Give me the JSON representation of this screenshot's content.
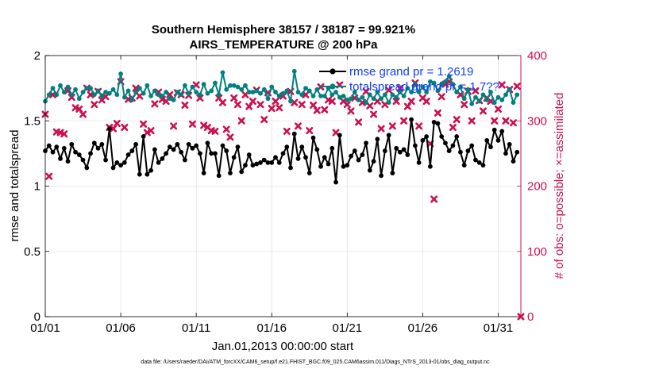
{
  "chart_data": {
    "type": "line",
    "title": "Southern Hemisphere 38157 / 38187 = 99.921%",
    "subtitle": "AIRS_TEMPERATURE @ 200 hPa",
    "xlabel": "Jan.01,2013 00:00:00 start",
    "ylabel": "rmse and totalspread",
    "y2label": "# of obs: o=possible; ×=assimilated",
    "xlim": [
      0,
      31.5
    ],
    "ylim": [
      0,
      2
    ],
    "y2lim": [
      0,
      400
    ],
    "x_ticks": [
      0,
      5,
      10,
      15,
      20,
      25,
      30
    ],
    "x_tick_labels": [
      "01/01",
      "01/06",
      "01/11",
      "01/16",
      "01/21",
      "01/26",
      "01/31"
    ],
    "y_ticks": [
      0,
      0.5,
      1,
      1.5,
      2
    ],
    "y_tick_labels": [
      "0",
      "0.5",
      "1",
      "1.5",
      "2"
    ],
    "y2_ticks": [
      0,
      100,
      200,
      300,
      400
    ],
    "y2_tick_labels": [
      "0",
      "100",
      "200",
      "300",
      "400"
    ],
    "grid": true,
    "legend_position": "top-right",
    "colors": {
      "rmse": "#000000",
      "spread": "#008080",
      "obs": "#cc0f4f",
      "right_axis": "#cc0f4f",
      "legend_text": "#1040ff"
    },
    "series": [
      {
        "name": "rmse grand pr = 1.2619",
        "color": "#000000",
        "x": [
          0.0,
          0.25,
          0.5,
          0.75,
          1.0,
          1.25,
          1.5,
          1.75,
          2.0,
          2.25,
          2.5,
          2.75,
          3.0,
          3.25,
          3.5,
          3.75,
          4.0,
          4.25,
          4.5,
          4.75,
          5.0,
          5.25,
          5.5,
          5.75,
          6.0,
          6.25,
          6.5,
          6.75,
          7.0,
          7.25,
          7.5,
          7.75,
          8.0,
          8.25,
          8.5,
          8.75,
          9.0,
          9.25,
          9.5,
          9.75,
          10.0,
          10.25,
          10.5,
          10.75,
          11.0,
          11.25,
          11.5,
          11.75,
          12.0,
          12.25,
          12.5,
          12.75,
          13.0,
          13.25,
          13.5,
          13.75,
          14.0,
          14.25,
          14.5,
          14.75,
          15.0,
          15.25,
          15.5,
          15.75,
          16.0,
          16.25,
          16.5,
          16.75,
          17.0,
          17.25,
          17.5,
          17.75,
          18.0,
          18.25,
          18.5,
          18.75,
          19.0,
          19.25,
          19.5,
          19.75,
          20.0,
          20.25,
          20.5,
          20.75,
          21.0,
          21.25,
          21.5,
          21.75,
          22.0,
          22.25,
          22.5,
          22.75,
          23.0,
          23.25,
          23.5,
          23.75,
          24.0,
          24.25,
          24.5,
          24.75,
          25.0,
          25.25,
          25.5,
          25.75,
          26.0,
          26.25,
          26.5,
          26.75,
          27.0,
          27.25,
          27.5,
          27.75,
          28.0,
          28.25,
          28.5,
          28.75,
          29.0,
          29.25,
          29.5,
          29.75,
          30.0,
          30.25,
          30.5,
          30.75,
          31.0,
          31.25
        ],
        "values": [
          1.27,
          1.31,
          1.26,
          1.3,
          1.21,
          1.29,
          1.19,
          1.32,
          1.26,
          1.24,
          1.2,
          1.14,
          1.25,
          1.33,
          1.29,
          1.32,
          1.2,
          1.44,
          1.14,
          1.18,
          1.16,
          1.18,
          1.24,
          1.27,
          1.32,
          1.09,
          1.38,
          1.09,
          1.12,
          1.28,
          1.18,
          1.21,
          1.25,
          1.3,
          1.28,
          1.32,
          1.26,
          1.2,
          1.32,
          1.29,
          1.31,
          1.25,
          1.1,
          1.33,
          1.25,
          1.25,
          1.08,
          1.31,
          1.27,
          1.1,
          1.22,
          1.3,
          1.11,
          1.16,
          1.24,
          1.16,
          1.17,
          1.18,
          1.2,
          1.18,
          1.18,
          1.22,
          1.18,
          1.25,
          1.3,
          1.14,
          1.4,
          1.21,
          1.3,
          1.22,
          1.1,
          1.37,
          1.28,
          1.15,
          1.22,
          1.17,
          1.29,
          1.03,
          1.39,
          1.15,
          1.16,
          1.23,
          1.27,
          1.2,
          1.24,
          1.33,
          1.12,
          1.19,
          1.36,
          1.08,
          1.27,
          1.39,
          1.1,
          1.29,
          1.26,
          1.28,
          1.24,
          1.51,
          1.31,
          1.18,
          1.35,
          1.38,
          1.15,
          1.49,
          1.48,
          1.38,
          1.33,
          1.27,
          1.31,
          1.38,
          1.26,
          1.16,
          1.27,
          1.31,
          1.2,
          1.18,
          1.16,
          1.35,
          1.3,
          1.43,
          1.35,
          1.42,
          1.25,
          1.32,
          1.19,
          1.26
        ]
      },
      {
        "name": "totalspread grand pr = 1.7??",
        "color": "#008080",
        "x": [
          0.0,
          0.25,
          0.5,
          0.75,
          1.0,
          1.25,
          1.5,
          1.75,
          2.0,
          2.25,
          2.5,
          2.75,
          3.0,
          3.25,
          3.5,
          3.75,
          4.0,
          4.25,
          4.5,
          4.75,
          5.0,
          5.25,
          5.5,
          5.75,
          6.0,
          6.25,
          6.5,
          6.75,
          7.0,
          7.25,
          7.5,
          7.75,
          8.0,
          8.25,
          8.5,
          8.75,
          9.0,
          9.25,
          9.5,
          9.75,
          10.0,
          10.25,
          10.5,
          10.75,
          11.0,
          11.25,
          11.5,
          11.75,
          12.0,
          12.25,
          12.5,
          12.75,
          13.0,
          13.25,
          13.5,
          13.75,
          14.0,
          14.25,
          14.5,
          14.75,
          15.0,
          15.25,
          15.5,
          15.75,
          16.0,
          16.25,
          16.5,
          16.75,
          17.0,
          17.25,
          17.5,
          17.75,
          18.0,
          18.25,
          18.5,
          18.75,
          19.0,
          19.25,
          19.5,
          19.75,
          20.0,
          20.25,
          20.5,
          20.75,
          21.0,
          21.25,
          21.5,
          21.75,
          22.0,
          22.25,
          22.5,
          22.75,
          23.0,
          23.25,
          23.5,
          23.75,
          24.0,
          24.25,
          24.5,
          24.75,
          25.0,
          25.25,
          25.5,
          25.75,
          26.0,
          26.25,
          26.5,
          26.75,
          27.0,
          27.25,
          27.5,
          27.75,
          28.0,
          28.25,
          28.5,
          28.75,
          29.0,
          29.25,
          29.5,
          29.75,
          30.0,
          30.25,
          30.5,
          30.75,
          31.0,
          31.25
        ],
        "values": [
          1.65,
          1.7,
          1.75,
          1.7,
          1.77,
          1.72,
          1.76,
          1.7,
          1.74,
          1.67,
          1.72,
          1.75,
          1.75,
          1.7,
          1.73,
          1.69,
          1.72,
          1.71,
          1.74,
          1.7,
          1.86,
          1.68,
          1.73,
          1.66,
          1.72,
          1.75,
          1.71,
          1.77,
          1.69,
          1.73,
          1.7,
          1.69,
          1.72,
          1.67,
          1.66,
          1.72,
          1.7,
          1.77,
          1.71,
          1.76,
          1.72,
          1.7,
          1.78,
          1.71,
          1.73,
          1.79,
          1.7,
          1.87,
          1.74,
          1.77,
          1.77,
          1.76,
          1.74,
          1.77,
          1.72,
          1.72,
          1.73,
          1.71,
          1.74,
          1.67,
          1.76,
          1.72,
          1.69,
          1.71,
          1.73,
          1.65,
          1.88,
          1.72,
          1.7,
          1.75,
          1.73,
          1.69,
          1.74,
          1.69,
          1.69,
          1.75,
          1.7,
          1.72,
          1.68,
          1.69,
          1.66,
          1.67,
          1.72,
          1.66,
          1.68,
          1.64,
          1.7,
          1.67,
          1.72,
          1.67,
          1.7,
          1.64,
          1.7,
          1.68,
          1.72,
          1.69,
          1.75,
          1.72,
          1.78,
          1.72,
          1.76,
          1.72,
          1.8,
          1.79,
          1.73,
          1.78,
          1.8,
          1.84,
          1.78,
          1.72,
          1.76,
          1.67,
          1.74,
          1.63,
          1.68,
          1.65,
          1.7,
          1.66,
          1.72,
          1.64,
          1.68,
          1.66,
          1.7,
          1.74,
          1.64,
          1.7
        ]
      },
      {
        "name": "obs assimilated",
        "color": "#cc0f4f",
        "axis": "right",
        "x": [
          0.0,
          0.25,
          0.5,
          0.75,
          1.0,
          1.25,
          1.5,
          1.75,
          2.0,
          2.25,
          2.5,
          2.75,
          3.0,
          3.25,
          3.5,
          3.75,
          4.0,
          4.25,
          4.5,
          4.75,
          5.0,
          5.25,
          5.5,
          5.75,
          6.0,
          6.25,
          6.5,
          6.75,
          7.0,
          7.25,
          7.5,
          7.75,
          8.0,
          8.25,
          8.5,
          8.75,
          9.0,
          9.25,
          9.5,
          9.75,
          10.0,
          10.25,
          10.5,
          10.75,
          11.0,
          11.25,
          11.5,
          11.75,
          12.0,
          12.25,
          12.5,
          12.75,
          13.0,
          13.25,
          13.5,
          13.75,
          14.0,
          14.25,
          14.5,
          14.75,
          15.0,
          15.25,
          15.5,
          15.75,
          16.0,
          16.25,
          16.5,
          16.75,
          17.0,
          17.25,
          17.5,
          17.75,
          18.0,
          18.25,
          18.5,
          18.75,
          19.0,
          19.25,
          19.5,
          19.75,
          20.0,
          20.25,
          20.5,
          20.75,
          21.0,
          21.25,
          21.5,
          21.75,
          22.0,
          22.25,
          22.5,
          22.75,
          23.0,
          23.25,
          23.5,
          23.75,
          24.0,
          24.25,
          24.5,
          24.75,
          25.0,
          25.25,
          25.5,
          25.75,
          26.0,
          26.25,
          26.5,
          26.75,
          27.0,
          27.25,
          27.5,
          27.75,
          28.0,
          28.25,
          28.5,
          28.75,
          29.0,
          29.25,
          29.5,
          29.75,
          30.0,
          30.25,
          30.5,
          30.75,
          31.0,
          31.25,
          31.5
        ],
        "values": [
          310,
          215,
          340,
          283,
          282,
          280,
          346,
          336,
          320,
          318,
          310,
          350,
          340,
          325,
          345,
          332,
          337,
          290,
          288,
          296,
          360,
          290,
          333,
          335,
          350,
          338,
          295,
          282,
          285,
          326,
          344,
          333,
          330,
          340,
          292,
          343,
          340,
          324,
          339,
          295,
          355,
          335,
          293,
          290,
          285,
          284,
          335,
          328,
          287,
          275,
          335,
          325,
          300,
          340,
          322,
          330,
          347,
          325,
          302,
          343,
          319,
          330,
          320,
          338,
          284,
          345,
          328,
          292,
          325,
          340,
          285,
          324,
          316,
          352,
          317,
          332,
          330,
          282,
          355,
          330,
          325,
          315,
          335,
          298,
          328,
          345,
          323,
          310,
          330,
          288,
          325,
          347,
          292,
          330,
          350,
          300,
          322,
          330,
          358,
          292,
          335,
          330,
          265,
          180,
          312,
          337,
          356,
          360,
          290,
          302,
          340,
          325,
          345,
          300,
          346,
          331,
          315,
          335,
          330,
          300,
          318,
          355,
          300,
          348,
          297,
          353,
          0
        ]
      }
    ],
    "footer": "data file: /Users/raeder/DAI/ATM_forcXX/CAM6_setup/f.e21.FHIST_BGC.f09_025.CAM6assim.011/Diags_NTrS_2013-01/obs_diag_output.nc"
  }
}
